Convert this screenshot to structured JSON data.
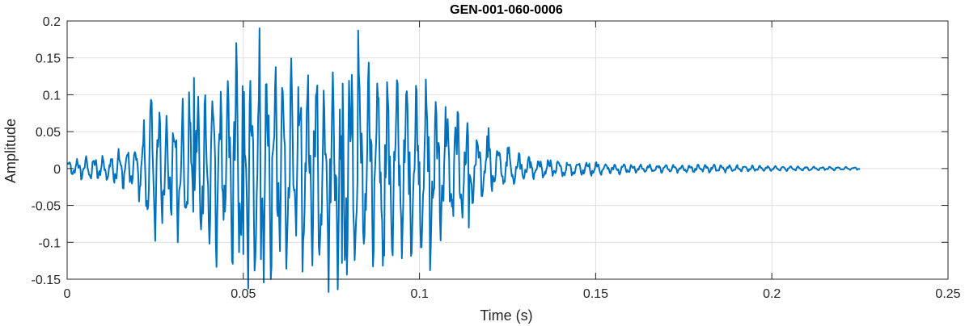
{
  "chart_data": {
    "type": "line",
    "title": "GEN-001-060-0006",
    "xlabel": "Time (s)",
    "ylabel": "Amplitude",
    "xlim": [
      0,
      0.25
    ],
    "ylim": [
      -0.15,
      0.2
    ],
    "xticks": [
      0,
      0.05,
      0.1,
      0.15,
      0.2,
      0.25
    ],
    "xtick_labels": [
      "0",
      "0.05",
      "0.1",
      "0.15",
      "0.2",
      "0.25"
    ],
    "yticks": [
      -0.15,
      -0.1,
      -0.05,
      0,
      0.05,
      0.1,
      0.15,
      0.2
    ],
    "ytick_labels": [
      "-0.15",
      "-0.1",
      "-0.05",
      "0",
      "0.05",
      "0.1",
      "0.15",
      "0.2"
    ],
    "grid": true,
    "line_color": "#0072BD",
    "series": [
      {
        "sample_rate_hz": 5000,
        "x_end": 0.225,
        "envelope": [
          [
            0.0,
            0.012
          ],
          [
            0.005,
            0.016
          ],
          [
            0.01,
            0.018
          ],
          [
            0.015,
            0.03
          ],
          [
            0.02,
            0.035
          ],
          [
            0.023,
            0.09
          ],
          [
            0.03,
            0.085
          ],
          [
            0.035,
            0.11
          ],
          [
            0.04,
            0.12
          ],
          [
            0.045,
            0.13
          ],
          [
            0.05,
            0.175
          ],
          [
            0.055,
            0.17
          ],
          [
            0.06,
            0.16
          ],
          [
            0.065,
            0.14
          ],
          [
            0.07,
            0.15
          ],
          [
            0.075,
            0.16
          ],
          [
            0.08,
            0.17
          ],
          [
            0.085,
            0.15
          ],
          [
            0.09,
            0.13
          ],
          [
            0.095,
            0.12
          ],
          [
            0.1,
            0.12
          ],
          [
            0.105,
            0.11
          ],
          [
            0.11,
            0.085
          ],
          [
            0.115,
            0.06
          ],
          [
            0.12,
            0.04
          ],
          [
            0.125,
            0.028
          ],
          [
            0.13,
            0.02
          ],
          [
            0.14,
            0.012
          ],
          [
            0.15,
            0.01
          ],
          [
            0.16,
            0.006
          ],
          [
            0.18,
            0.006
          ],
          [
            0.2,
            0.004
          ],
          [
            0.225,
            0.002
          ]
        ],
        "peaks": [
          [
            0.05,
            0.188
          ],
          [
            0.0545,
            0.19
          ],
          [
            0.0825,
            0.187
          ],
          [
            0.048,
            0.17
          ],
          [
            0.036,
            0.123
          ],
          [
            0.024,
            0.09
          ],
          [
            0.1195,
            0.055
          ],
          [
            0.125,
            0.028
          ],
          [
            0.103,
            -0.138
          ],
          [
            0.05,
            -0.116
          ],
          [
            0.055,
            -0.123
          ],
          [
            0.078,
            -0.128
          ],
          [
            0.025,
            -0.098
          ],
          [
            0.09,
            -0.118
          ],
          [
            0.114,
            -0.08
          ]
        ]
      }
    ]
  }
}
